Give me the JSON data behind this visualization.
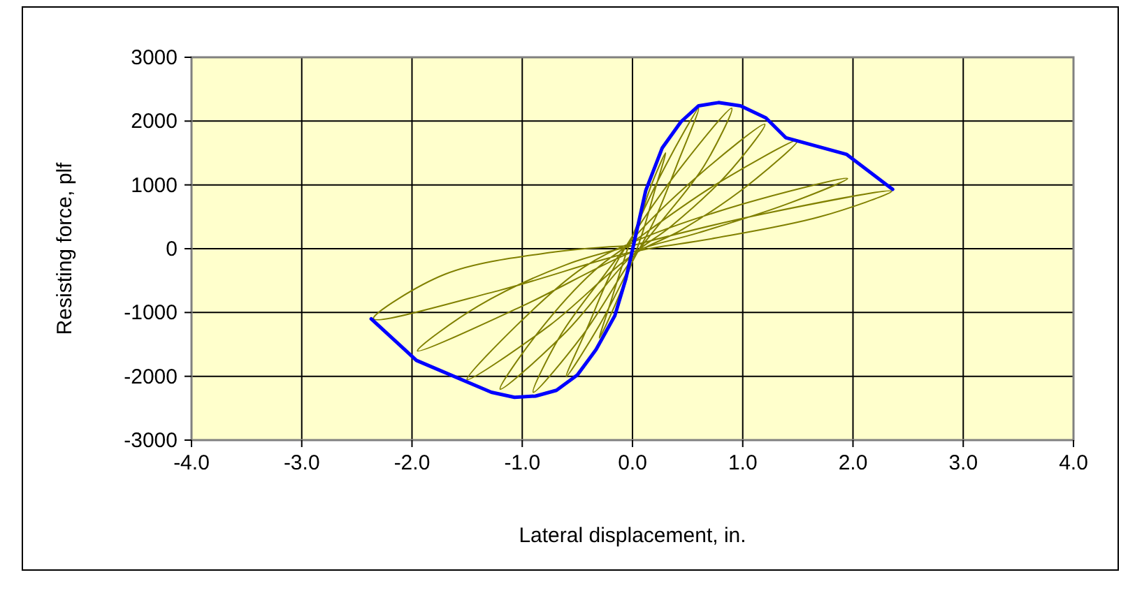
{
  "chart_data": {
    "type": "line",
    "xlabel": "Lateral displacement, in.",
    "ylabel": "Resisting force, plf",
    "xlim": [
      -4,
      4
    ],
    "ylim": [
      -3000,
      3000
    ],
    "xticks": [
      {
        "value": -4,
        "label": "-4.0"
      },
      {
        "value": -3,
        "label": "-3.0"
      },
      {
        "value": -2,
        "label": "-2.0"
      },
      {
        "value": -1,
        "label": "-1.0"
      },
      {
        "value": 0,
        "label": "0.0"
      },
      {
        "value": 1,
        "label": "1.0"
      },
      {
        "value": 2,
        "label": "2.0"
      },
      {
        "value": 3,
        "label": "3.0"
      },
      {
        "value": 4,
        "label": "4.0"
      }
    ],
    "yticks": [
      -3000,
      -2000,
      -1000,
      0,
      1000,
      2000,
      3000
    ],
    "grid": true,
    "marker": "none",
    "line_style": "solid",
    "series": [
      {
        "color": "#808000",
        "x": [
          0,
          0.15,
          0.3,
          0.2,
          0.1,
          0,
          -0.15,
          -0.3,
          -0.2,
          -0.1,
          0,
          0.3,
          0.6,
          0.4,
          0.2,
          0,
          -0.3,
          -0.6,
          -0.4,
          -0.2,
          0,
          0.45,
          0.9,
          0.65,
          0.25,
          0,
          -0.45,
          -0.9,
          -0.65,
          -0.25,
          0,
          0.6,
          1.2,
          0.85,
          0.35,
          0,
          -0.6,
          -1.2,
          -0.85,
          -0.35,
          0,
          0.75,
          1.5,
          1.05,
          0.45,
          0,
          -0.75,
          -1.5,
          -1.05,
          -0.45,
          0,
          1,
          1.95,
          1.4,
          0.6,
          0,
          -1,
          -1.95,
          -1.4,
          -0.6,
          0,
          1.2,
          2.35,
          1.7,
          0.7,
          0,
          -1.2,
          -2.35,
          -1.7,
          -0.7,
          0
        ],
        "values": [
          0,
          900,
          1500,
          900,
          300,
          -200,
          -850,
          -1400,
          -850,
          -300,
          200,
          1300,
          2200,
          1300,
          450,
          -200,
          -1200,
          -2000,
          -1200,
          -400,
          200,
          1300,
          2200,
          1300,
          400,
          -150,
          -1350,
          -2250,
          -1350,
          -400,
          150,
          1150,
          1950,
          1150,
          350,
          -100,
          -1300,
          -2200,
          -1300,
          -350,
          100,
          1000,
          1700,
          1000,
          300,
          -100,
          -1200,
          -2050,
          -1200,
          -300,
          100,
          700,
          1100,
          700,
          250,
          -50,
          -900,
          -1600,
          -900,
          -250,
          50,
          550,
          900,
          500,
          150,
          -50,
          -650,
          -1100,
          -400,
          -50,
          50
        ]
      },
      {
        "color": "#0000ff",
        "x": [
          -2.37,
          -1.96,
          -1.28,
          -1.07,
          -0.88,
          -0.69,
          -0.5,
          -0.33,
          -0.16,
          -0.06,
          0.01,
          0.12,
          0.27,
          0.44,
          0.6,
          0.78,
          0.98,
          1.21,
          1.39,
          1.94,
          2.36
        ],
        "values": [
          -1100,
          -1750,
          -2250,
          -2330,
          -2310,
          -2220,
          -1980,
          -1580,
          -1050,
          -470,
          60,
          910,
          1580,
          1990,
          2240,
          2290,
          2240,
          2050,
          1740,
          1480,
          930
        ]
      }
    ]
  }
}
